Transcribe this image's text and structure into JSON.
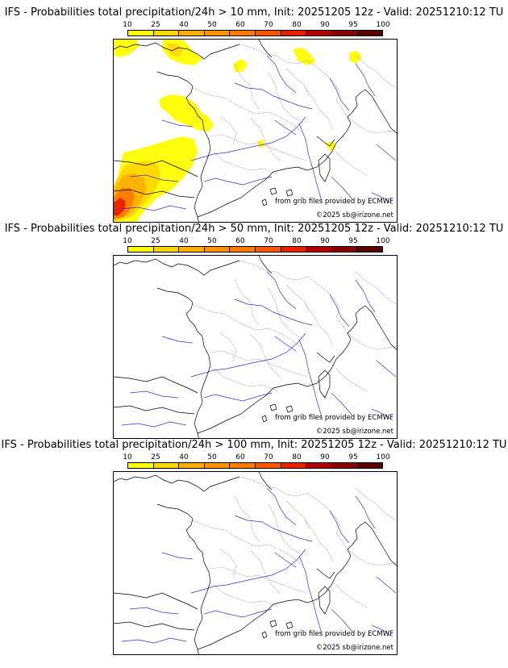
{
  "colorbar": {
    "ticks": [
      "10",
      "25",
      "40",
      "50",
      "60",
      "70",
      "80",
      "90",
      "95",
      "100"
    ],
    "colors": [
      "#ffff00",
      "#ffd700",
      "#ffb000",
      "#ff9400",
      "#ff7a00",
      "#ff5500",
      "#e82000",
      "#b00000",
      "#880000",
      "#5a0000"
    ]
  },
  "map": {
    "coast_color": "#000000",
    "border_color": "#9a9a9a",
    "river_color": "#3333dd",
    "credit": "from grib files provided by ECMWF",
    "copyright": "©2025 sb@irizone.net"
  },
  "panels": [
    {
      "title": "IFS - Probabilities total precipitation/24h > 10 mm, Init: 20251205 12z - Valid: 20251210:12 TU",
      "has_precip": true
    },
    {
      "title": "IFS - Probabilities total precipitation/24h > 50 mm, Init: 20251205 12z - Valid: 20251210:12 TU",
      "has_precip": false
    },
    {
      "title": "IFS - Probabilities total precipitation/24h > 100 mm, Init: 20251205 12z - Valid: 20251210:12 TU",
      "has_precip": false
    }
  ]
}
